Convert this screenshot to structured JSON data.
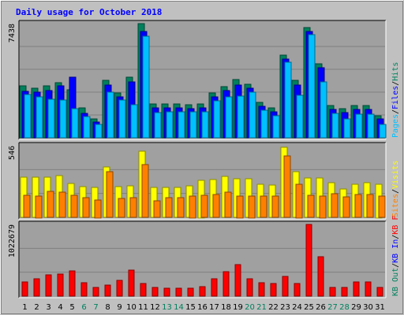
{
  "title": "Daily usage for October 2018",
  "colors": {
    "background": "#c0c0c0",
    "title": "#0000ff",
    "panel": "#a0a0a0",
    "hits": "#00805c",
    "files": "#0000ff",
    "pages": "#00c0ff",
    "visits": "#ffff00",
    "sites": "#ff8000",
    "kbytes": "#ff0000",
    "kbin": "#0000ff",
    "kbout": "#00805c",
    "weekend": "#00805c",
    "weekday": "#000000",
    "gridline": "#808080",
    "border": "#000000"
  },
  "chart_data": {
    "type": "bar",
    "days": [
      "1",
      "2",
      "3",
      "4",
      "5",
      "6",
      "7",
      "8",
      "9",
      "10",
      "11",
      "12",
      "13",
      "14",
      "15",
      "16",
      "17",
      "18",
      "19",
      "20",
      "21",
      "22",
      "23",
      "24",
      "25",
      "26",
      "27",
      "28",
      "29",
      "30",
      "31"
    ],
    "weekend_days": [
      "6",
      "7",
      "13",
      "14",
      "20",
      "21",
      "27",
      "28"
    ],
    "panels": [
      {
        "id": "top",
        "max_label": "7438",
        "ymax": 7438,
        "legend": [
          {
            "text": "Hits",
            "color": "#00805c"
          },
          {
            "text": "Files",
            "color": "#0000ff"
          },
          {
            "text": "Pages",
            "color": "#00c0ff"
          }
        ],
        "series": [
          {
            "name": "Hits",
            "values": [
              3400,
              3250,
              3400,
              3600,
              3150,
              1950,
              1250,
              3750,
              2900,
              3950,
              7438,
              2200,
              2200,
              2200,
              2150,
              2200,
              2900,
              3350,
              3800,
              3500,
              2300,
              1950,
              5400,
              3750,
              7200,
              4800,
              2100,
              1900,
              2100,
              2100,
              1450
            ]
          },
          {
            "name": "Files",
            "values": [
              3050,
              2950,
              3100,
              3400,
              3950,
              1600,
              1050,
              3450,
              2650,
              3650,
              6950,
              1950,
              1950,
              1950,
              1900,
              1950,
              2650,
              3100,
              3450,
              3250,
              2050,
              1700,
              5150,
              3450,
              6950,
              4550,
              1850,
              1650,
              1850,
              1850,
              1250
            ]
          },
          {
            "name": "Pages",
            "values": [
              2800,
              2650,
              2500,
              2450,
              1900,
              1400,
              850,
              2950,
              2450,
              2150,
              6600,
              1650,
              1700,
              1700,
              1700,
              1700,
              2400,
              2650,
              2700,
              2950,
              1800,
              1450,
              4900,
              2750,
              6700,
              3650,
              1600,
              1250,
              1550,
              1550,
              850
            ]
          }
        ]
      },
      {
        "id": "middle",
        "max_label": "546",
        "ymax": 546,
        "legend": [
          {
            "text": "Visits",
            "color": "#ffff00"
          },
          {
            "text": "Sites",
            "color": "#ff8000"
          }
        ],
        "series": [
          {
            "name": "Visits",
            "values": [
              305,
              305,
              305,
              320,
              260,
              235,
              230,
              385,
              235,
              240,
              505,
              230,
              230,
              230,
              240,
              285,
              290,
              315,
              295,
              295,
              250,
              245,
              535,
              350,
              300,
              300,
              265,
              215,
              250,
              265,
              255
            ]
          },
          {
            "name": "Sites",
            "values": [
              170,
              165,
              200,
              190,
              170,
              150,
              135,
              350,
              145,
              150,
              400,
              125,
              150,
              150,
              165,
              170,
              175,
              190,
              165,
              165,
              160,
              160,
              470,
              255,
              170,
              165,
              180,
              155,
              175,
              175,
              160
            ]
          }
        ]
      },
      {
        "id": "bottom",
        "max_label": "1022679",
        "ymax": 1022679,
        "legend": [
          {
            "text": "KB F",
            "color": "#ff0000"
          },
          {
            "text": "KB In",
            "color": "#0000ff"
          },
          {
            "text": "KB Out",
            "color": "#00805c"
          }
        ],
        "series": [
          {
            "name": "KB F",
            "values": [
              200000,
              250000,
              300000,
              310000,
              360000,
              190000,
              120000,
              160000,
              220000,
              370000,
              180000,
              120000,
              110000,
              110000,
              110000,
              140000,
              250000,
              350000,
              450000,
              250000,
              190000,
              180000,
              280000,
              180000,
              1022679,
              560000,
              120000,
              120000,
              200000,
              200000,
              120000
            ]
          }
        ]
      }
    ]
  }
}
